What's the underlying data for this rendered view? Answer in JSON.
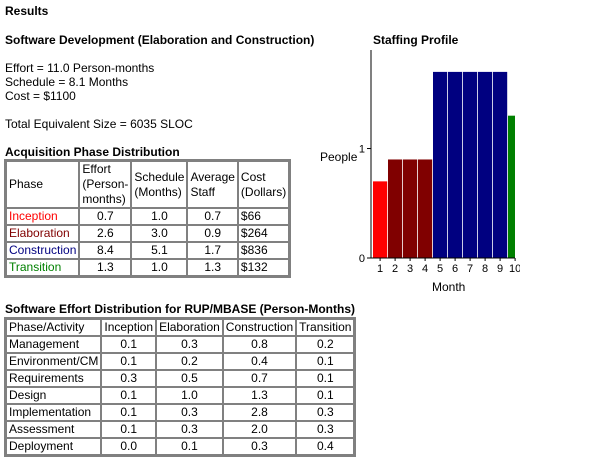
{
  "results_heading": "Results",
  "section_title": "Software Development (Elaboration and Construction)",
  "summary": {
    "effort": "Effort = 11.0 Person-months",
    "schedule": "Schedule = 8.1 Months",
    "cost": "Cost = $1100",
    "size": "Total Equivalent Size = 6035 SLOC"
  },
  "colors": {
    "inception": "#ff0000",
    "elaboration": "#800000",
    "construction": "#000080",
    "transition": "#008000"
  },
  "phase_table": {
    "title": "Acquisition Phase Distribution",
    "headers": {
      "phase": "Phase",
      "effort_l1": "Effort",
      "effort_l2": "(Person-",
      "effort_l3": "months)",
      "schedule_l1": "Schedule",
      "schedule_l2": "(Months)",
      "staff_l1": "Average",
      "staff_l2": "Staff",
      "cost_l1": "Cost",
      "cost_l2": "(Dollars)"
    },
    "rows": [
      {
        "phase": "Inception",
        "effort": "0.7",
        "schedule": "1.0",
        "staff": "0.7",
        "cost": "$66"
      },
      {
        "phase": "Elaboration",
        "effort": "2.6",
        "schedule": "3.0",
        "staff": "0.9",
        "cost": "$264"
      },
      {
        "phase": "Construction",
        "effort": "8.4",
        "schedule": "5.1",
        "staff": "1.7",
        "cost": "$836"
      },
      {
        "phase": "Transition",
        "effort": "1.3",
        "schedule": "1.0",
        "staff": "1.3",
        "cost": "$132"
      }
    ]
  },
  "effort_table": {
    "title": "Software Effort Distribution for RUP/MBASE (Person-Months)",
    "headers": [
      "Phase/Activity",
      "Inception",
      "Elaboration",
      "Construction",
      "Transition"
    ],
    "rows": [
      {
        "activity": "Management",
        "inception": "0.1",
        "elaboration": "0.3",
        "construction": "0.8",
        "transition": "0.2"
      },
      {
        "activity": "Environment/CM",
        "inception": "0.1",
        "elaboration": "0.2",
        "construction": "0.4",
        "transition": "0.1"
      },
      {
        "activity": "Requirements",
        "inception": "0.3",
        "elaboration": "0.5",
        "construction": "0.7",
        "transition": "0.1"
      },
      {
        "activity": "Design",
        "inception": "0.1",
        "elaboration": "1.0",
        "construction": "1.3",
        "transition": "0.1"
      },
      {
        "activity": "Implementation",
        "inception": "0.1",
        "elaboration": "0.3",
        "construction": "2.8",
        "transition": "0.3"
      },
      {
        "activity": "Assessment",
        "inception": "0.1",
        "elaboration": "0.3",
        "construction": "2.0",
        "transition": "0.3"
      },
      {
        "activity": "Deployment",
        "inception": "0.0",
        "elaboration": "0.1",
        "construction": "0.3",
        "transition": "0.4"
      }
    ]
  },
  "chart_data": {
    "type": "bar",
    "title": "Staffing Profile",
    "xlabel": "Month",
    "ylabel": "People",
    "ylim": [
      0,
      1.9
    ],
    "yticks": [
      "0",
      "1"
    ],
    "ytick_values": [
      0,
      1
    ],
    "categories": [
      "1",
      "2",
      "3",
      "4",
      "5",
      "6",
      "7",
      "8",
      "9",
      "10"
    ],
    "values": [
      0.7,
      0.9,
      0.9,
      0.9,
      1.7,
      1.7,
      1.7,
      1.7,
      1.7,
      1.3
    ],
    "bar_colors": [
      "#ff0000",
      "#800000",
      "#800000",
      "#800000",
      "#000080",
      "#000080",
      "#000080",
      "#000080",
      "#000080",
      "#008000"
    ],
    "grid": false
  }
}
